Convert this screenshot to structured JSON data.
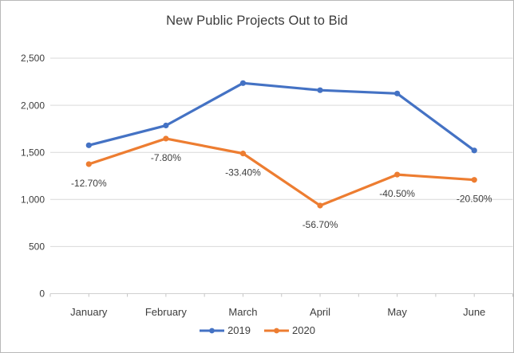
{
  "chart_data": {
    "type": "line",
    "title": "New Public Projects Out to Bid",
    "categories": [
      "January",
      "February",
      "March",
      "April",
      "May",
      "June"
    ],
    "series": [
      {
        "name": "2019",
        "color": "#4472C4",
        "values": [
          1575,
          1785,
          2235,
          2160,
          2125,
          1520
        ]
      },
      {
        "name": "2020",
        "color": "#ED7D31",
        "values": [
          1375,
          1646,
          1488,
          935,
          1264,
          1208
        ],
        "point_labels": [
          "-12.70%",
          "-7.80%",
          "-33.40%",
          "-56.70%",
          "-40.50%",
          "-20.50%"
        ]
      }
    ],
    "y_axis": {
      "min": 0,
      "max": 2500,
      "step": 500,
      "tick_labels": [
        "0",
        "500",
        "1,000",
        "1,500",
        "2,000",
        "2,500"
      ]
    },
    "x_axis": {
      "tick_marks": "boundaries-and-centers"
    },
    "grid": true,
    "legend_position": "bottom",
    "colors": {
      "gridline": "#D9D9D9",
      "axis_line": "#D0D0D0",
      "tick_mark": "#C6C6C6",
      "axis_text": "#3d3d3d",
      "label_text": "#3d3d3d",
      "title_text": "#3b3b3b",
      "background": "#FFFFFF",
      "frame_border": "#B9B9B9"
    }
  }
}
